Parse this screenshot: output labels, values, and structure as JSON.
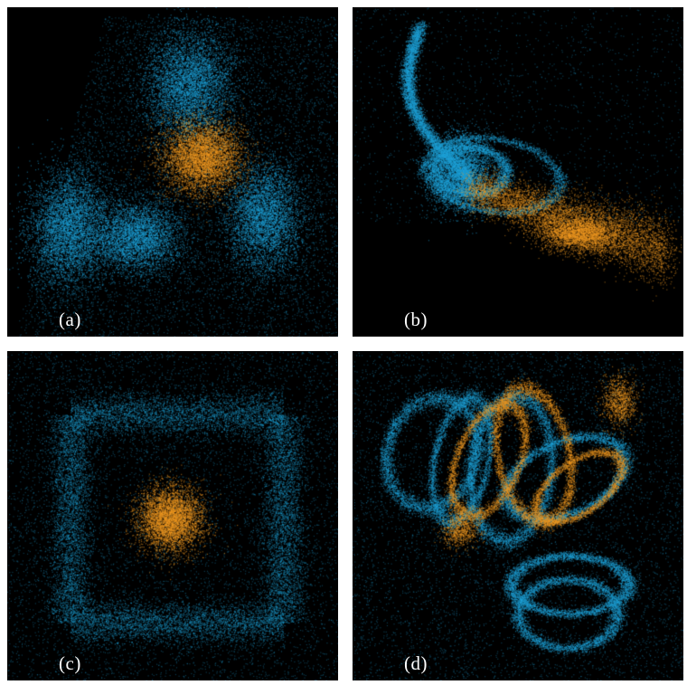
{
  "colors": {
    "background": "#000000",
    "cyan": "#1fa3d9",
    "orange": "#f29a22"
  },
  "panels": [
    {
      "id": "a",
      "label": "(a)"
    },
    {
      "id": "b",
      "label": "(b)"
    },
    {
      "id": "c",
      "label": "(c)"
    },
    {
      "id": "d",
      "label": "(d)"
    }
  ]
}
